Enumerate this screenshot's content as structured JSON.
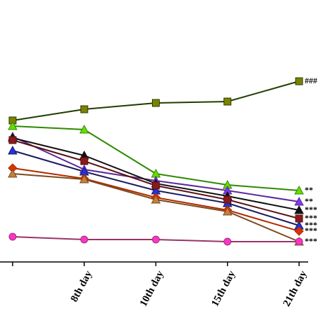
{
  "chart_data": {
    "type": "line",
    "categories": [
      null,
      "8th day",
      "10th day",
      "15th day",
      "21th day"
    ],
    "ylim": [
      0,
      474
    ],
    "series": [
      {
        "color": "#1f3d00",
        "marker_color": "#808000",
        "marker": "square",
        "values": [
          302,
          318,
          327,
          329,
          358
        ]
      },
      {
        "color": "#2d8a00",
        "marker_color": "#66dd00",
        "marker": "triangle",
        "values": [
          294,
          289,
          226,
          210,
          202
        ]
      },
      {
        "color": "#5b2a9a",
        "marker_color": "#7a3cf0",
        "marker": "triangle",
        "values": [
          279,
          232,
          216,
          202,
          186
        ]
      },
      {
        "color": "#111111",
        "marker_color": "#111111",
        "marker": "triangle",
        "values": [
          277,
          252,
          212,
          194,
          174
        ]
      },
      {
        "color": "#1a1a60",
        "marker_color": "#2233dd",
        "marker": "triangle",
        "values": [
          259,
          229,
          202,
          184,
          152
        ]
      },
      {
        "color": "#5a1010",
        "marker_color": "#8b1a1a",
        "marker": "square",
        "values": [
          274,
          244,
          209,
          189,
          162
        ]
      },
      {
        "color": "#b02a00",
        "marker_color": "#dd3300",
        "marker": "diamond",
        "values": [
          234,
          219,
          192,
          174,
          144
        ]
      },
      {
        "color": "#7a4a1a",
        "marker_color": "#c08040",
        "marker": "triangle",
        "values": [
          226,
          218,
          189,
          172,
          129
        ]
      },
      {
        "color": "#993366",
        "marker_color": "#ff33cc",
        "marker": "circle",
        "values": [
          136,
          132,
          132,
          129,
          129
        ]
      }
    ],
    "annotations": [
      {
        "text": "###",
        "series": 0
      },
      {
        "text": "**",
        "series": 1
      },
      {
        "text": "**",
        "series": 2
      },
      {
        "text": "***",
        "series": 3
      },
      {
        "text": "***",
        "series": 5
      },
      {
        "text": "***",
        "series": 4
      },
      {
        "text": "***",
        "series": 6
      },
      {
        "text": "***",
        "series": 8
      }
    ]
  }
}
